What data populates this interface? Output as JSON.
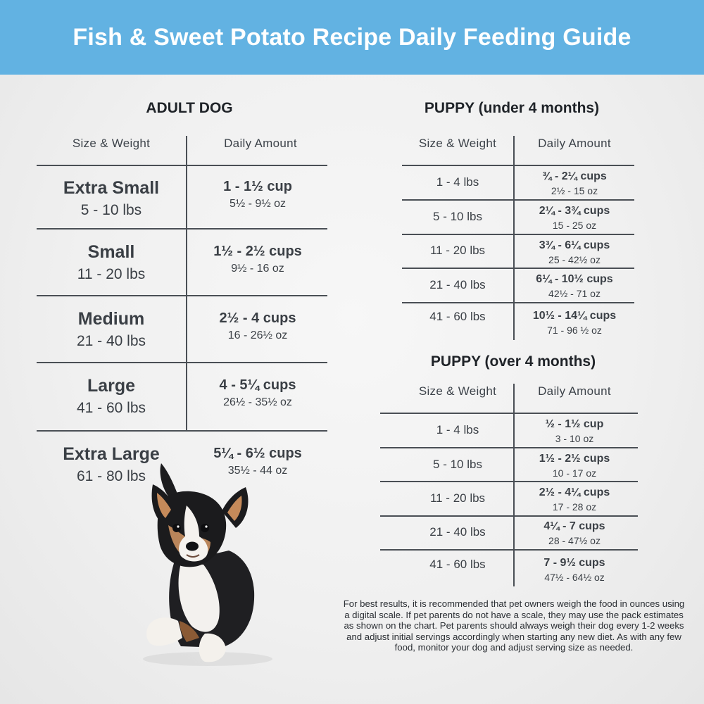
{
  "header": {
    "title": "Fish & Sweet Potato Recipe Daily Feeding Guide"
  },
  "adult": {
    "title": "ADULT DOG",
    "col_size": "Size & Weight",
    "col_amount": "Daily Amount",
    "rows": [
      {
        "name": "Extra Small",
        "weight": "5 - 10 lbs",
        "cups": "1 - 1½ cup",
        "oz": "5½ - 9½ oz"
      },
      {
        "name": "Small",
        "weight": "11 - 20 lbs",
        "cups": "1½ - 2½ cups",
        "oz": "9½ - 16 oz"
      },
      {
        "name": "Medium",
        "weight": "21 - 40 lbs",
        "cups": "2½ - 4 cups",
        "oz": "16 - 26½ oz"
      },
      {
        "name": "Large",
        "weight": "41 - 60 lbs",
        "cups": "4 - 5¼ cups",
        "oz": "26½ - 35½ oz"
      },
      {
        "name": "Extra Large",
        "weight": "61 - 80 lbs",
        "cups": "5¼ - 6½ cups",
        "oz": "35½ - 44 oz"
      }
    ]
  },
  "puppy_under": {
    "title": "PUPPY (under 4 months)",
    "col_size": "Size & Weight",
    "col_amount": "Daily Amount",
    "rows": [
      {
        "weight": "1 - 4 lbs",
        "cups": "¾ - 2¼ cups",
        "oz": "2½ - 15 oz"
      },
      {
        "weight": "5 - 10 lbs",
        "cups": "2¼ - 3¾ cups",
        "oz": "15 - 25 oz"
      },
      {
        "weight": "11 - 20 lbs",
        "cups": "3¾ - 6¼ cups",
        "oz": "25 - 42½ oz"
      },
      {
        "weight": "21 - 40 lbs",
        "cups": "6¼ - 10½ cups",
        "oz": "42½ - 71 oz"
      },
      {
        "weight": "41 - 60 lbs",
        "cups": "10½ - 14¼ cups",
        "oz": "71 - 96 ½ oz"
      }
    ]
  },
  "puppy_over": {
    "title": "PUPPY (over 4 months)",
    "col_size": "Size & Weight",
    "col_amount": "Daily Amount",
    "rows": [
      {
        "weight": "1 - 4 lbs",
        "cups": "½ - 1½ cup",
        "oz": "3 - 10 oz"
      },
      {
        "weight": "5 - 10 lbs",
        "cups": "1½ - 2½ cups",
        "oz": "10 - 17 oz"
      },
      {
        "weight": "11 - 20 lbs",
        "cups": "2½ - 4¼ cups",
        "oz": "17 - 28 oz"
      },
      {
        "weight": "21 - 40 lbs",
        "cups": "4¼ - 7 cups",
        "oz": "28 - 47½ oz"
      },
      {
        "weight": "41 - 60 lbs",
        "cups": "7 - 9½ cups",
        "oz": "47½ - 64½ oz"
      }
    ]
  },
  "footnote": "For best results, it is recommended that pet owners weigh the food in ounces using a digital scale. If pet parents do not have a scale, they may use the pack estimates as shown on the chart. Pet parents should always weigh their dog every 1-2 weeks and adjust initial servings accordingly when starting any new diet. As with any few food, monitor your dog and adjust serving size as needed.",
  "colors": {
    "header_bg": "#62b2e2",
    "header_text": "#ffffff",
    "text": "#3a3f45",
    "rule": "#4a4f55"
  },
  "photo": {
    "icon": "corgi-puppy-photo"
  }
}
